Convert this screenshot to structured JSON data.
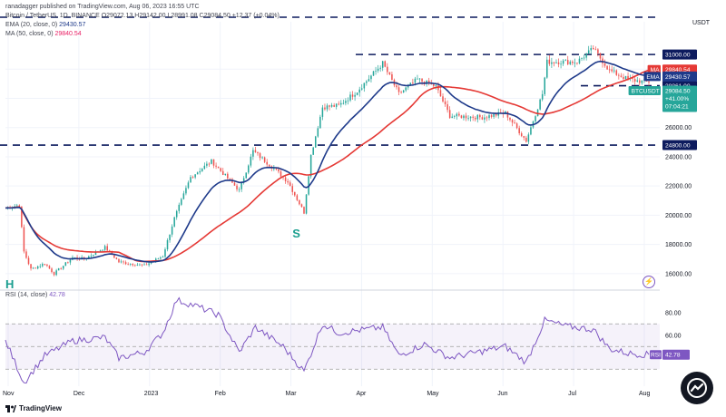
{
  "header": {
    "published": "ranadagger published on TradingView.com, Aug 06, 2023 16:55 UTC",
    "symbol": "Bitcoin / TetherUS, 1D, BINANCE",
    "ohlc": "O29072.13 H29142.00 L28991.08 C29084.50 +12.37 (+0.04%)",
    "ema_label": "EMA (20, close, 0)",
    "ema_value": "29430.57",
    "ma_label": "MA (50, close, 0)",
    "ma_value": "29840.54",
    "rsi_label": "RSI (14, close)",
    "rsi_value": "42.78"
  },
  "price_axis": {
    "currency": "USDT",
    "ticks": [
      "16000.00",
      "18000.00",
      "20000.00",
      "22000.00",
      "24000.00",
      "26000.00",
      "28000.00"
    ],
    "level_tags": [
      {
        "name": "resistance-31000",
        "label": "31000.00",
        "value": 31000
      },
      {
        "name": "support-24800",
        "label": "24800.00",
        "value": 24800
      },
      {
        "name": "support-28861",
        "label": "28861.00",
        "value": 28861
      }
    ],
    "ma_tag": {
      "prefix": "MA",
      "label": "29840.54",
      "value": 29840.54
    },
    "ema_tag": {
      "prefix": "EMA",
      "label": "29430.57",
      "value": 29430.57
    },
    "price_tag": {
      "prefix": "BTCUSDT",
      "label": "29084.50",
      "change": "+41.00%",
      "countdown": "07:04:21",
      "value": 29084.5
    }
  },
  "rsi_axis": {
    "ticks": [
      "80.00",
      "60.00"
    ],
    "tag_prefix": "RSI",
    "tag_label": "42.78",
    "value": 42.78
  },
  "time_axis": [
    "Nov",
    "Dec",
    "2023",
    "Feb",
    "Mar",
    "Apr",
    "May",
    "Jun",
    "Jul",
    "Aug"
  ],
  "annotations": [
    {
      "name": "head-label",
      "label": "H",
      "day": 0,
      "price": 15300
    },
    {
      "name": "shoulder-label",
      "label": "S",
      "day": 124,
      "price": 18800
    }
  ],
  "footer": {
    "brand": "TradingView"
  },
  "chart_data": {
    "type": "candlestick",
    "title": "Bitcoin / TetherUS, 1D, BINANCE",
    "ylabel": "USDT",
    "ylim": [
      15000,
      32000
    ],
    "x_start": "2022-11-01",
    "x_end": "2023-08-06",
    "horizontal_levels": [
      31000,
      24800,
      28861
    ],
    "close_series": [
      {
        "date": "2022-11-01",
        "close": 20500
      },
      {
        "date": "2022-11-07",
        "close": 20700
      },
      {
        "date": "2022-11-09",
        "close": 17500
      },
      {
        "date": "2022-11-12",
        "close": 16300
      },
      {
        "date": "2022-11-18",
        "close": 16700
      },
      {
        "date": "2022-11-22",
        "close": 16000
      },
      {
        "date": "2022-11-30",
        "close": 17100
      },
      {
        "date": "2022-12-05",
        "close": 17000
      },
      {
        "date": "2022-12-14",
        "close": 17800
      },
      {
        "date": "2022-12-20",
        "close": 16800
      },
      {
        "date": "2022-12-31",
        "close": 16550
      },
      {
        "date": "2023-01-08",
        "close": 17200
      },
      {
        "date": "2023-01-13",
        "close": 19800
      },
      {
        "date": "2023-01-20",
        "close": 22600
      },
      {
        "date": "2023-01-29",
        "close": 23700
      },
      {
        "date": "2023-02-10",
        "close": 21700
      },
      {
        "date": "2023-02-16",
        "close": 24400
      },
      {
        "date": "2023-02-25",
        "close": 23200
      },
      {
        "date": "2023-03-03",
        "close": 22300
      },
      {
        "date": "2023-03-10",
        "close": 20200
      },
      {
        "date": "2023-03-13",
        "close": 24100
      },
      {
        "date": "2023-03-18",
        "close": 27400
      },
      {
        "date": "2023-03-25",
        "close": 27500
      },
      {
        "date": "2023-04-02",
        "close": 28500
      },
      {
        "date": "2023-04-13",
        "close": 30400
      },
      {
        "date": "2023-04-20",
        "close": 28300
      },
      {
        "date": "2023-04-28",
        "close": 29300
      },
      {
        "date": "2023-05-06",
        "close": 28800
      },
      {
        "date": "2023-05-12",
        "close": 26800
      },
      {
        "date": "2023-05-26",
        "close": 26700
      },
      {
        "date": "2023-06-05",
        "close": 27000
      },
      {
        "date": "2023-06-14",
        "close": 25100
      },
      {
        "date": "2023-06-21",
        "close": 28300
      },
      {
        "date": "2023-06-23",
        "close": 30500
      },
      {
        "date": "2023-07-06",
        "close": 30500
      },
      {
        "date": "2023-07-13",
        "close": 31400
      },
      {
        "date": "2023-07-20",
        "close": 29900
      },
      {
        "date": "2023-07-28",
        "close": 29300
      },
      {
        "date": "2023-08-06",
        "close": 29084
      }
    ],
    "series": [
      {
        "name": "EMA (20, close, 0)",
        "color": "#1e3a8a",
        "last": 29430.57
      },
      {
        "name": "MA (50, close, 0)",
        "color": "#e53935",
        "last": 29840.54
      }
    ],
    "rsi": {
      "name": "RSI (14, close)",
      "ylim": [
        15,
        95
      ],
      "bands": [
        30,
        50,
        70
      ],
      "points": [
        {
          "date": "2022-11-01",
          "value": 55
        },
        {
          "date": "2022-11-09",
          "value": 18
        },
        {
          "date": "2022-11-18",
          "value": 42
        },
        {
          "date": "2022-11-30",
          "value": 55
        },
        {
          "date": "2022-12-14",
          "value": 58
        },
        {
          "date": "2022-12-20",
          "value": 40
        },
        {
          "date": "2022-12-31",
          "value": 45
        },
        {
          "date": "2023-01-08",
          "value": 62
        },
        {
          "date": "2023-01-14",
          "value": 91
        },
        {
          "date": "2023-01-22",
          "value": 86
        },
        {
          "date": "2023-02-01",
          "value": 78
        },
        {
          "date": "2023-02-10",
          "value": 45
        },
        {
          "date": "2023-02-17",
          "value": 67
        },
        {
          "date": "2023-03-01",
          "value": 50
        },
        {
          "date": "2023-03-10",
          "value": 28
        },
        {
          "date": "2023-03-18",
          "value": 70
        },
        {
          "date": "2023-03-25",
          "value": 62
        },
        {
          "date": "2023-04-13",
          "value": 67
        },
        {
          "date": "2023-04-20",
          "value": 42
        },
        {
          "date": "2023-05-01",
          "value": 52
        },
        {
          "date": "2023-05-12",
          "value": 40
        },
        {
          "date": "2023-06-05",
          "value": 50
        },
        {
          "date": "2023-06-14",
          "value": 36
        },
        {
          "date": "2023-06-22",
          "value": 73
        },
        {
          "date": "2023-07-01",
          "value": 68
        },
        {
          "date": "2023-07-13",
          "value": 65
        },
        {
          "date": "2023-07-20",
          "value": 48
        },
        {
          "date": "2023-07-28",
          "value": 44
        },
        {
          "date": "2023-08-06",
          "value": 42.78
        }
      ]
    }
  }
}
